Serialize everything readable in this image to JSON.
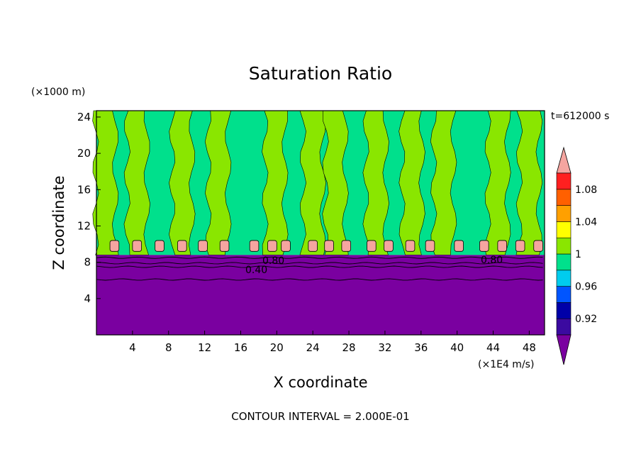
{
  "chart_data": {
    "type": "heatmap",
    "title": "Saturation Ratio",
    "xlabel": "X coordinate",
    "ylabel": "Z coordinate",
    "x_unit": "(×1E4 m/s)",
    "y_unit": "(×1000 m)",
    "time_label": "t=612000 s",
    "footer": "CONTOUR INTERVAL = 2.000E-01",
    "xlim": [
      0,
      49.7
    ],
    "ylim": [
      0,
      24.7
    ],
    "x_ticks": [
      "4",
      "8",
      "12",
      "16",
      "20",
      "24",
      "28",
      "32",
      "36",
      "40",
      "44",
      "48"
    ],
    "y_ticks": [
      "4",
      "8",
      "12",
      "16",
      "20",
      "24"
    ],
    "contour_labels": [
      "0.80",
      "0.40",
      "0.80"
    ],
    "contour_interval": 0.2,
    "colorbar": {
      "tick_labels": [
        "0.92",
        "0.96",
        "1",
        "1.04",
        "1.08"
      ],
      "levels": [
        {
          "lo": null,
          "hi": 0.9,
          "color": "#7a00a0"
        },
        {
          "lo": 0.9,
          "hi": 0.92,
          "color": "#3b0aa0"
        },
        {
          "lo": 0.92,
          "hi": 0.94,
          "color": "#0000a8"
        },
        {
          "lo": 0.94,
          "hi": 0.96,
          "color": "#0055ff"
        },
        {
          "lo": 0.96,
          "hi": 0.98,
          "color": "#00ccee"
        },
        {
          "lo": 0.98,
          "hi": 1.0,
          "color": "#00e08c"
        },
        {
          "lo": 1.0,
          "hi": 1.02,
          "color": "#8ae600"
        },
        {
          "lo": 1.02,
          "hi": 1.04,
          "color": "#ffff00"
        },
        {
          "lo": 1.04,
          "hi": 1.06,
          "color": "#ffa000"
        },
        {
          "lo": 1.06,
          "hi": 1.08,
          "color": "#ff6000"
        },
        {
          "lo": 1.08,
          "hi": 1.1,
          "color": "#ff2020"
        },
        {
          "lo": 1.1,
          "hi": null,
          "color": "#f5a5a0"
        }
      ]
    },
    "regions": {
      "dry_layer_top_km": 8.8,
      "background_value_range": [
        0.98,
        1.0
      ],
      "plume_value_range": [
        1.0,
        1.02
      ],
      "plume_x_centers": [
        1.0,
        4.5,
        9.5,
        13.5,
        19.8,
        24.0,
        26.5,
        31.0,
        35.0,
        38.5,
        44.5,
        48.0
      ],
      "cap_value": 1.1,
      "cap_x_centers": [
        2.0,
        4.5,
        7.0,
        9.5,
        11.8,
        14.2,
        17.5,
        19.5,
        21.0,
        24.0,
        25.8,
        27.7,
        30.5,
        32.4,
        34.8,
        37.0,
        40.2,
        43.0,
        45.0,
        47.0,
        49.0
      ]
    }
  }
}
